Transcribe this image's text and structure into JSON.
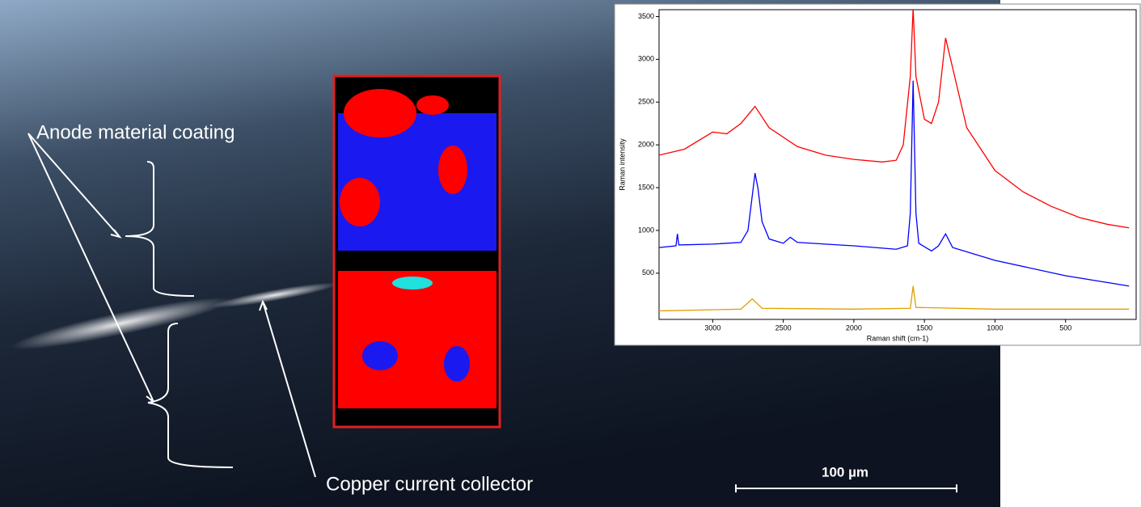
{
  "annotations": [
    "Anode material coating",
    "Copper current collector"
  ],
  "scale_bar": "100 µm",
  "chart_data": {
    "type": "line",
    "xlabel": "Raman shift (cm-1)",
    "ylabel": "Raman intensity",
    "xlim": [
      3380,
      0
    ],
    "ylim": [
      -40,
      3580
    ],
    "xticks": [
      3000,
      2500,
      2000,
      1500,
      1000,
      500
    ],
    "yticks": [
      500,
      1000,
      1500,
      2000,
      2500,
      3000,
      3500
    ],
    "series": [
      {
        "color": "#ff0000",
        "x": [
          3380,
          3200,
          3000,
          2900,
          2800,
          2700,
          2600,
          2400,
          2200,
          2000,
          1800,
          1700,
          1650,
          1600,
          1580,
          1560,
          1500,
          1450,
          1400,
          1350,
          1300,
          1200,
          1000,
          800,
          600,
          400,
          200,
          50
        ],
        "values": [
          1880,
          1950,
          2150,
          2130,
          2250,
          2450,
          2200,
          1980,
          1880,
          1830,
          1800,
          1820,
          2000,
          2800,
          3600,
          2800,
          2300,
          2250,
          2500,
          3250,
          2900,
          2200,
          1700,
          1450,
          1280,
          1150,
          1070,
          1030
        ]
      },
      {
        "color": "#0000ff",
        "x": [
          3380,
          3260,
          3250,
          3240,
          3000,
          2800,
          2750,
          2720,
          2700,
          2680,
          2650,
          2600,
          2500,
          2450,
          2400,
          2000,
          1700,
          1620,
          1600,
          1580,
          1560,
          1540,
          1450,
          1400,
          1350,
          1300,
          1000,
          500,
          50
        ],
        "values": [
          800,
          820,
          960,
          830,
          840,
          860,
          1000,
          1400,
          1670,
          1500,
          1100,
          900,
          850,
          920,
          860,
          820,
          780,
          820,
          1200,
          2750,
          1200,
          850,
          760,
          820,
          960,
          800,
          650,
          470,
          350
        ]
      },
      {
        "color": "#e0a000",
        "x": [
          3380,
          2800,
          2720,
          2650,
          2000,
          1600,
          1580,
          1560,
          1000,
          50
        ],
        "values": [
          60,
          80,
          200,
          90,
          80,
          90,
          350,
          100,
          80,
          80
        ]
      }
    ]
  }
}
